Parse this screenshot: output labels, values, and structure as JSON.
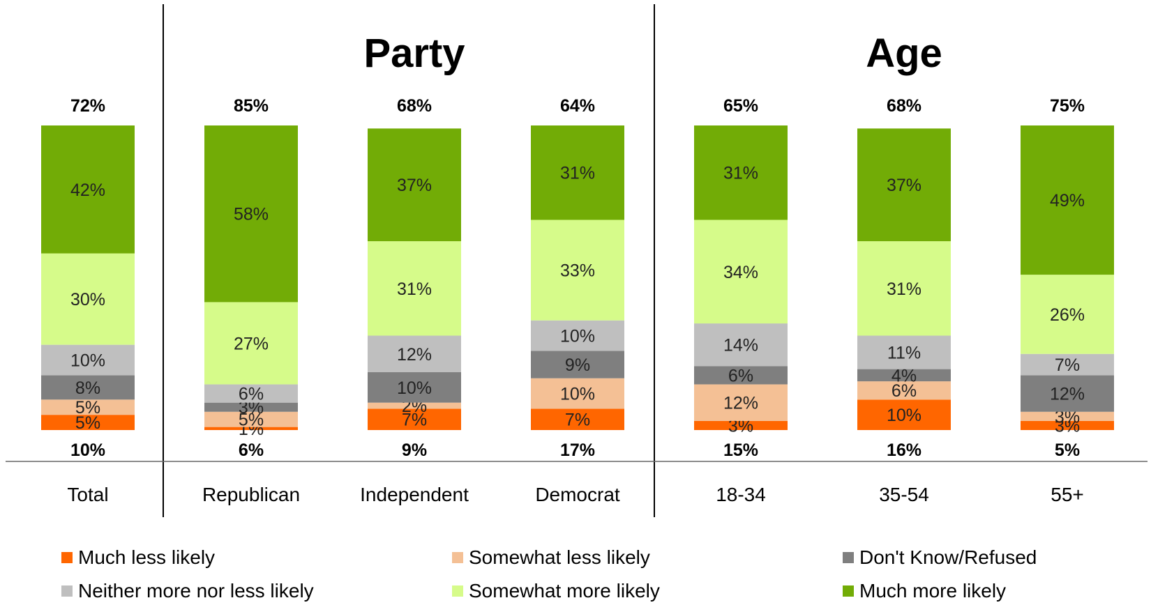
{
  "chart_data": {
    "type": "bar",
    "stacked": true,
    "groups": [
      {
        "title": "",
        "categories": [
          "Total"
        ]
      },
      {
        "title": "Party",
        "categories": [
          "Republican",
          "Independent",
          "Democrat"
        ]
      },
      {
        "title": "Age",
        "categories": [
          "18-34",
          "35-54",
          "55+"
        ]
      }
    ],
    "categories": [
      "Total",
      "Republican",
      "Independent",
      "Democrat",
      "18-34",
      "35-54",
      "55+"
    ],
    "top_totals": [
      "72%",
      "85%",
      "68%",
      "64%",
      "65%",
      "68%",
      "75%"
    ],
    "bottom_totals": [
      "10%",
      "6%",
      "9%",
      "17%",
      "15%",
      "16%",
      "5%"
    ],
    "series": [
      {
        "name": "Much less likely",
        "color": "#ff6600",
        "values": [
          5,
          1,
          7,
          7,
          3,
          10,
          3
        ],
        "labels": [
          "5%",
          "1%",
          "7%",
          "7%",
          "3%",
          "10%",
          "3%"
        ]
      },
      {
        "name": "Somewhat less likely",
        "color": "#f4c095",
        "values": [
          5,
          5,
          2,
          10,
          12,
          6,
          3
        ],
        "labels": [
          "5%",
          "5%",
          "2%",
          "10%",
          "12%",
          "6%",
          "3%"
        ]
      },
      {
        "name": "Don't Know/Refused",
        "color": "#7f7f7f",
        "values": [
          8,
          3,
          10,
          9,
          6,
          4,
          12
        ],
        "labels": [
          "8%",
          "3%",
          "10%",
          "9%",
          "6%",
          "4%",
          "12%"
        ]
      },
      {
        "name": "Neither more nor less likely",
        "color": "#bfbfbf",
        "values": [
          10,
          6,
          12,
          10,
          14,
          11,
          7
        ],
        "labels": [
          "10%",
          "6%",
          "12%",
          "10%",
          "14%",
          "11%",
          "7%"
        ]
      },
      {
        "name": "Somewhat more likely",
        "color": "#d6fb8a",
        "values": [
          30,
          27,
          31,
          33,
          34,
          31,
          26
        ],
        "labels": [
          "30%",
          "27%",
          "31%",
          "33%",
          "34%",
          "31%",
          "26%"
        ]
      },
      {
        "name": "Much more likely",
        "color": "#72ac06",
        "values": [
          42,
          58,
          37,
          31,
          31,
          37,
          49
        ],
        "labels": [
          "42%",
          "58%",
          "37%",
          "31%",
          "31%",
          "37%",
          "49%"
        ]
      }
    ],
    "legend_order": [
      [
        "Much less likely",
        "Somewhat less likely",
        "Don't Know/Refused"
      ],
      [
        "Neither more nor less likely",
        "Somewhat more likely",
        "Much more likely"
      ]
    ],
    "legend_placement": "bottom",
    "ylim": [
      0,
      100
    ]
  }
}
